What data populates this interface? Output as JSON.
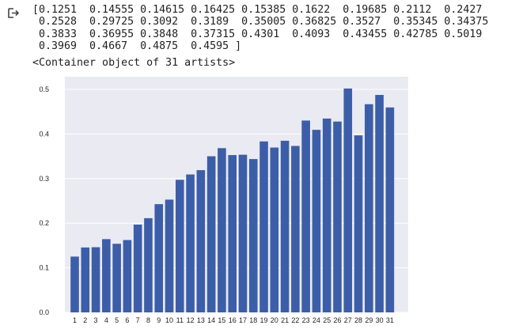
{
  "cell_output": {
    "icon": "output-redirect-icon",
    "stdout_lines": [
      "[0.1251  0.14555 0.14615 0.16425 0.15385 0.1622  0.19685 0.2112  0.2427",
      " 0.2528  0.29725 0.3092  0.3189  0.35005 0.36825 0.3527  0.35345 0.34375",
      " 0.3833  0.36955 0.3848  0.37315 0.4301  0.4093  0.43455 0.42785 0.5019",
      " 0.3969  0.4667  0.4875  0.4595 ]"
    ],
    "repr_text": "<Container object of 31 artists>"
  },
  "chart_data": {
    "type": "bar",
    "categories": [
      "1",
      "2",
      "3",
      "4",
      "5",
      "6",
      "7",
      "8",
      "9",
      "10",
      "11",
      "12",
      "13",
      "14",
      "15",
      "16",
      "17",
      "18",
      "19",
      "20",
      "21",
      "22",
      "23",
      "24",
      "25",
      "26",
      "27",
      "28",
      "29",
      "30",
      "31"
    ],
    "values": [
      0.1251,
      0.14555,
      0.14615,
      0.16425,
      0.15385,
      0.1622,
      0.19685,
      0.2112,
      0.2427,
      0.2528,
      0.29725,
      0.3092,
      0.3189,
      0.35005,
      0.36825,
      0.3527,
      0.35345,
      0.34375,
      0.3833,
      0.36955,
      0.3848,
      0.37315,
      0.4301,
      0.4093,
      0.43455,
      0.42785,
      0.5019,
      0.3969,
      0.4667,
      0.4875,
      0.4595
    ],
    "ylim": [
      0,
      0.5
    ],
    "yticks": [
      "0.0",
      "0.1",
      "0.2",
      "0.3",
      "0.4",
      "0.5"
    ],
    "ytick_values": [
      0,
      0.1,
      0.2,
      0.3,
      0.4,
      0.5
    ],
    "grid": true,
    "colors": {
      "bar": "#3c5ea8",
      "background": "#eaeaf2",
      "grid": "#ffffff"
    }
  }
}
